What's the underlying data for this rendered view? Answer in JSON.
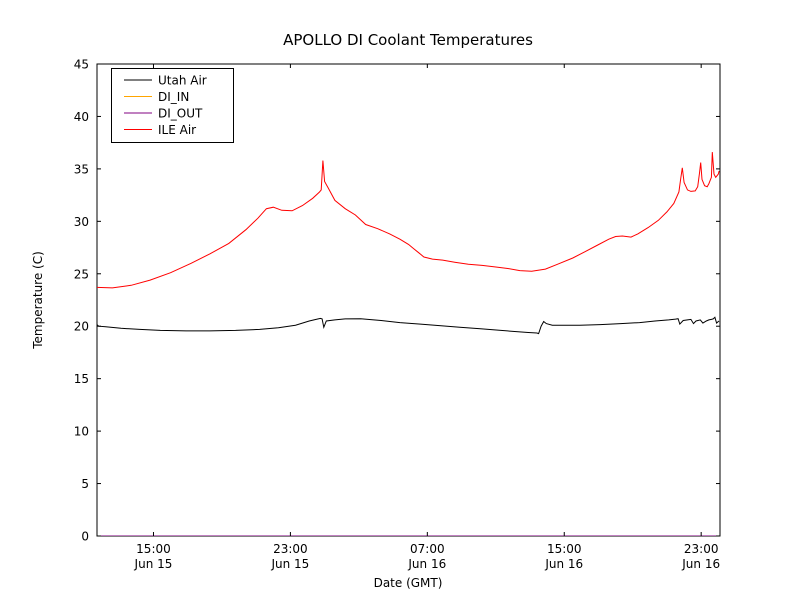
{
  "figure": {
    "title": "APOLLO DI Coolant Temperatures",
    "xlabel": "Date (GMT)",
    "ylabel": "Temperature (C)"
  },
  "colors": {
    "background": "#ffffff",
    "axis": "#000000",
    "utah_air": "#000000",
    "di_in": "#ffa500",
    "di_out": "#800080",
    "ile_air": "#ff0000"
  },
  "chart_data": {
    "type": "line",
    "title": "APOLLO DI Coolant Temperatures",
    "xlabel": "Date (GMT)",
    "ylabel": "Temperature (C)",
    "x_unit": "hours since Jun 15 00:00 GMT",
    "xlim": [
      11.7,
      48.1
    ],
    "ylim": [
      0,
      45
    ],
    "grid": false,
    "legend_position": "upper left",
    "yticks": [
      0,
      5,
      10,
      15,
      20,
      25,
      30,
      35,
      40,
      45
    ],
    "xticks": [
      {
        "x": 15,
        "time": "15:00",
        "date": "Jun 15"
      },
      {
        "x": 23,
        "time": "23:00",
        "date": "Jun 15"
      },
      {
        "x": 31,
        "time": "07:00",
        "date": "Jun 16"
      },
      {
        "x": 39,
        "time": "15:00",
        "date": "Jun 16"
      },
      {
        "x": 47,
        "time": "23:00",
        "date": "Jun 16"
      }
    ],
    "series": [
      {
        "name": "Utah Air",
        "color": "#000000",
        "points": [
          [
            11.7,
            20.15
          ],
          [
            11.8,
            20.0
          ],
          [
            12.2,
            19.95
          ],
          [
            13.1,
            19.8
          ],
          [
            14.2,
            19.7
          ],
          [
            15.4,
            19.6
          ],
          [
            16.9,
            19.55
          ],
          [
            18.3,
            19.55
          ],
          [
            19.8,
            19.6
          ],
          [
            21.2,
            19.7
          ],
          [
            22.3,
            19.85
          ],
          [
            23.3,
            20.1
          ],
          [
            24.1,
            20.5
          ],
          [
            24.5,
            20.65
          ],
          [
            24.75,
            20.75
          ],
          [
            24.85,
            20.7
          ],
          [
            24.95,
            19.9
          ],
          [
            25.1,
            20.5
          ],
          [
            25.6,
            20.6
          ],
          [
            26.2,
            20.7
          ],
          [
            27.1,
            20.72
          ],
          [
            28.3,
            20.55
          ],
          [
            29.4,
            20.35
          ],
          [
            30.6,
            20.2
          ],
          [
            31.8,
            20.05
          ],
          [
            32.9,
            19.9
          ],
          [
            34.1,
            19.75
          ],
          [
            35.3,
            19.6
          ],
          [
            36.1,
            19.5
          ],
          [
            36.9,
            19.4
          ],
          [
            37.4,
            19.35
          ],
          [
            37.5,
            19.3
          ],
          [
            37.65,
            20.0
          ],
          [
            37.8,
            20.45
          ],
          [
            37.95,
            20.25
          ],
          [
            38.3,
            20.1
          ],
          [
            38.8,
            20.1
          ],
          [
            39.9,
            20.1
          ],
          [
            41.1,
            20.15
          ],
          [
            42.3,
            20.25
          ],
          [
            43.4,
            20.35
          ],
          [
            44.3,
            20.5
          ],
          [
            45.1,
            20.6
          ],
          [
            45.5,
            20.68
          ],
          [
            45.65,
            20.72
          ],
          [
            45.75,
            20.2
          ],
          [
            45.95,
            20.55
          ],
          [
            46.2,
            20.6
          ],
          [
            46.4,
            20.65
          ],
          [
            46.55,
            20.25
          ],
          [
            46.7,
            20.5
          ],
          [
            46.95,
            20.6
          ],
          [
            47.1,
            20.3
          ],
          [
            47.3,
            20.5
          ],
          [
            47.45,
            20.6
          ],
          [
            47.6,
            20.65
          ],
          [
            47.7,
            20.7
          ],
          [
            47.8,
            20.85
          ],
          [
            47.9,
            20.3
          ],
          [
            48.0,
            20.45
          ],
          [
            48.05,
            20.5
          ]
        ]
      },
      {
        "name": "DI_IN",
        "color": "#ffa500",
        "points": [
          [
            11.7,
            0
          ],
          [
            48.1,
            0
          ]
        ]
      },
      {
        "name": "DI_OUT",
        "color": "#800080",
        "points": [
          [
            11.7,
            0
          ],
          [
            48.1,
            0
          ]
        ]
      },
      {
        "name": "ILE Air",
        "color": "#ff0000",
        "points": [
          [
            11.7,
            23.7
          ],
          [
            12.6,
            23.65
          ],
          [
            13.7,
            23.9
          ],
          [
            14.8,
            24.4
          ],
          [
            16.0,
            25.1
          ],
          [
            17.2,
            26.0
          ],
          [
            18.3,
            26.9
          ],
          [
            19.4,
            27.9
          ],
          [
            20.4,
            29.2
          ],
          [
            21.1,
            30.3
          ],
          [
            21.6,
            31.2
          ],
          [
            22.0,
            31.35
          ],
          [
            22.5,
            31.05
          ],
          [
            23.1,
            31.0
          ],
          [
            23.7,
            31.5
          ],
          [
            24.3,
            32.2
          ],
          [
            24.7,
            32.8
          ],
          [
            24.8,
            33.0
          ],
          [
            24.9,
            35.8
          ],
          [
            25.0,
            33.8
          ],
          [
            25.2,
            33.2
          ],
          [
            25.6,
            32.0
          ],
          [
            26.2,
            31.2
          ],
          [
            26.8,
            30.6
          ],
          [
            27.4,
            29.7
          ],
          [
            28.1,
            29.3
          ],
          [
            28.8,
            28.8
          ],
          [
            29.4,
            28.3
          ],
          [
            29.9,
            27.8
          ],
          [
            30.2,
            27.4
          ],
          [
            30.5,
            27.0
          ],
          [
            30.8,
            26.6
          ],
          [
            31.3,
            26.4
          ],
          [
            31.9,
            26.3
          ],
          [
            32.6,
            26.1
          ],
          [
            33.4,
            25.9
          ],
          [
            34.2,
            25.8
          ],
          [
            35.0,
            25.65
          ],
          [
            35.7,
            25.5
          ],
          [
            36.4,
            25.3
          ],
          [
            37.1,
            25.25
          ],
          [
            37.9,
            25.45
          ],
          [
            38.6,
            25.9
          ],
          [
            39.5,
            26.5
          ],
          [
            40.2,
            27.1
          ],
          [
            40.9,
            27.7
          ],
          [
            41.6,
            28.3
          ],
          [
            42.0,
            28.55
          ],
          [
            42.4,
            28.6
          ],
          [
            42.9,
            28.5
          ],
          [
            43.3,
            28.8
          ],
          [
            43.9,
            29.4
          ],
          [
            44.5,
            30.1
          ],
          [
            45.0,
            30.9
          ],
          [
            45.4,
            31.7
          ],
          [
            45.7,
            32.8
          ],
          [
            45.8,
            34.0
          ],
          [
            45.9,
            35.1
          ],
          [
            46.0,
            33.7
          ],
          [
            46.2,
            33.0
          ],
          [
            46.4,
            32.85
          ],
          [
            46.65,
            32.9
          ],
          [
            46.8,
            33.3
          ],
          [
            46.9,
            34.6
          ],
          [
            46.97,
            35.6
          ],
          [
            47.05,
            34.0
          ],
          [
            47.2,
            33.4
          ],
          [
            47.35,
            33.3
          ],
          [
            47.45,
            33.6
          ],
          [
            47.6,
            34.2
          ],
          [
            47.65,
            36.6
          ],
          [
            47.75,
            34.5
          ],
          [
            47.85,
            34.2
          ],
          [
            48.0,
            34.5
          ],
          [
            48.05,
            34.8
          ]
        ]
      }
    ]
  }
}
